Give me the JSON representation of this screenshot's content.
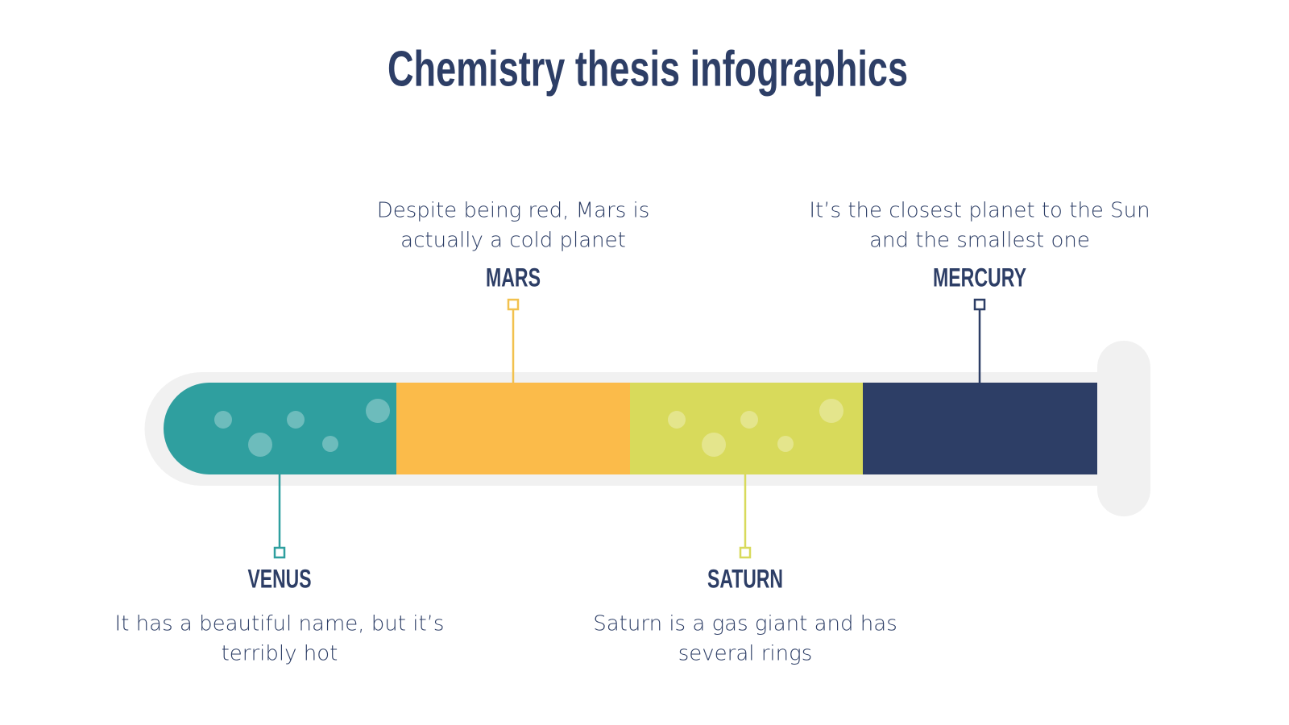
{
  "title": "Chemistry thesis infographics",
  "items": [
    {
      "name": "VENUS",
      "description": [
        "It has a beautiful name, but it’s",
        "terribly hot"
      ]
    },
    {
      "name": "MARS",
      "description": [
        "Despite being red, Mars is",
        "actually a cold planet"
      ]
    },
    {
      "name": "SATURN",
      "description": [
        "Saturn is a gas giant and has",
        "several rings"
      ]
    },
    {
      "name": "MERCURY",
      "description": [
        "It’s the closest planet to the Sun",
        "and the smallest one"
      ]
    }
  ]
}
